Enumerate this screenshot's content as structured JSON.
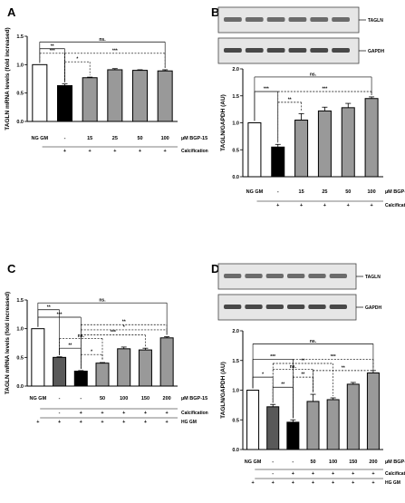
{
  "chart_data": [
    {
      "panel": "A",
      "type": "bar",
      "ylabel": "TAGLN mRNA levels (fold increased)",
      "ylim": [
        0,
        1.5
      ],
      "yticks": [
        "0.0",
        "0.5",
        "1.0",
        "1.5"
      ],
      "categories": [
        "NG GM",
        "-",
        "15",
        "25",
        "50",
        "100"
      ],
      "values": [
        1.0,
        0.63,
        0.77,
        0.91,
        0.9,
        0.89
      ],
      "errors": [
        0,
        0.03,
        0.01,
        0.02,
        0.01,
        0.02
      ],
      "fills": [
        "#ffffff",
        "#000000",
        "#999999",
        "#999999",
        "#999999",
        "#999999"
      ],
      "condition_label": "µM BGP-15",
      "rows": [
        {
          "label": "Calcification Medium",
          "marks": [
            "",
            "+",
            "+",
            "+",
            "+",
            "+"
          ]
        }
      ],
      "significance": [
        {
          "from": 0,
          "to": 5,
          "label": "ns.",
          "level": 1.4,
          "style": "solid"
        },
        {
          "from": 0,
          "to": 1,
          "label": "**",
          "level": 1.28,
          "style": "solid"
        },
        {
          "from": 0,
          "to": 1,
          "label": "***",
          "level": 1.2,
          "style": "dashed"
        },
        {
          "from": 1,
          "to": 2,
          "label": "*",
          "level": 1.05,
          "style": "dashed"
        },
        {
          "from": 1,
          "to": 5,
          "label": "***",
          "level": 1.2,
          "style": "dashed"
        }
      ]
    },
    {
      "panel": "B",
      "type": "bar",
      "ylabel": "TAGLN/GAPDH (AU)",
      "ylim": [
        0,
        2.0
      ],
      "yticks": [
        "0.0",
        "0.5",
        "1.0",
        "1.5",
        "2.0"
      ],
      "categories": [
        "NG GM",
        "-",
        "15",
        "25",
        "50",
        "100"
      ],
      "values": [
        1.0,
        0.55,
        1.05,
        1.22,
        1.28,
        1.45
      ],
      "errors": [
        0,
        0.05,
        0.12,
        0.07,
        0.08,
        0.03
      ],
      "fills": [
        "#ffffff",
        "#000000",
        "#999999",
        "#999999",
        "#999999",
        "#999999"
      ],
      "condition_label": "µM BGP-15",
      "rows": [
        {
          "label": "Calcification Medium",
          "marks": [
            "",
            "+",
            "+",
            "+",
            "+",
            "+"
          ]
        }
      ],
      "blot_labels": [
        "TAGLN",
        "GAPDH"
      ],
      "significance": [
        {
          "from": 0,
          "to": 5,
          "label": "ns.",
          "level": 1.85,
          "style": "solid"
        },
        {
          "from": 0,
          "to": 1,
          "label": "***",
          "level": 1.58,
          "style": "solid"
        },
        {
          "from": 1,
          "to": 2,
          "label": "**",
          "level": 1.38,
          "style": "dashed"
        },
        {
          "from": 1,
          "to": 5,
          "label": "***",
          "level": 1.58,
          "style": "dashed"
        }
      ]
    },
    {
      "panel": "C",
      "type": "bar",
      "ylabel": "TAGLN mRNA levels (fold increased)",
      "ylim": [
        0,
        1.5
      ],
      "yticks": [
        "0.0",
        "0.5",
        "1.0",
        "1.5"
      ],
      "categories": [
        "NG GM",
        "-",
        "-",
        "50",
        "100",
        "150",
        "200"
      ],
      "values": [
        1.0,
        0.5,
        0.26,
        0.4,
        0.65,
        0.63,
        0.84
      ],
      "errors": [
        0,
        0.01,
        0.01,
        0.01,
        0.03,
        0.03,
        0.02
      ],
      "fills": [
        "#ffffff",
        "#595959",
        "#000000",
        "#999999",
        "#999999",
        "#999999",
        "#999999"
      ],
      "condition_label": "µM BGP-15",
      "rows": [
        {
          "label": "Calcification Medium",
          "marks": [
            "",
            "-",
            "+",
            "+",
            "+",
            "+",
            "+"
          ]
        },
        {
          "label": "HG GM",
          "marks": [
            "+",
            "+",
            "+",
            "+",
            "+",
            "+",
            "+"
          ]
        }
      ],
      "significance": [
        {
          "from": 0,
          "to": 6,
          "label": "ns.",
          "level": 1.45,
          "style": "solid"
        },
        {
          "from": 0,
          "to": 1,
          "label": "**",
          "level": 1.33,
          "style": "solid"
        },
        {
          "from": 0,
          "to": 2,
          "label": "***",
          "level": 1.2,
          "style": "solid"
        },
        {
          "from": 2,
          "to": 6,
          "label": "**",
          "level": 1.07,
          "style": "dashed"
        },
        {
          "from": 2,
          "to": 6,
          "label": "*",
          "level": 0.98,
          "style": "dashed"
        },
        {
          "from": 1,
          "to": 3,
          "label": "ns.",
          "level": 0.83,
          "style": "dashed"
        },
        {
          "from": 2,
          "to": 5,
          "label": "***",
          "level": 0.89,
          "style": "dashed"
        },
        {
          "from": 1,
          "to": 2,
          "label": "**",
          "level": 0.66,
          "style": "solid"
        },
        {
          "from": 2,
          "to": 3,
          "label": "*",
          "level": 0.55,
          "style": "dashed"
        }
      ]
    },
    {
      "panel": "D",
      "type": "bar",
      "ylabel": "TAGLN/GAPDH (AU)",
      "ylim": [
        0,
        2.0
      ],
      "yticks": [
        "0.0",
        "0.5",
        "1.0",
        "1.5",
        "2.0"
      ],
      "categories": [
        "NG GM",
        "-",
        "-",
        "50",
        "100",
        "150",
        "200"
      ],
      "values": [
        1.0,
        0.72,
        0.46,
        0.81,
        0.84,
        1.1,
        1.29
      ],
      "errors": [
        0,
        0.04,
        0.04,
        0.12,
        0.03,
        0.03,
        0.04
      ],
      "fills": [
        "#ffffff",
        "#595959",
        "#000000",
        "#999999",
        "#999999",
        "#999999",
        "#999999"
      ],
      "condition_label": "µM BGP-15",
      "rows": [
        {
          "label": "Calcification Medium",
          "marks": [
            "",
            "-",
            "+",
            "+",
            "+",
            "+",
            "+"
          ]
        },
        {
          "label": "HG GM",
          "marks": [
            "+",
            "+",
            "+",
            "+",
            "+",
            "+",
            "+"
          ]
        }
      ],
      "blot_labels": [
        "TAGLN",
        "GAPDH"
      ],
      "significance": [
        {
          "from": 0,
          "to": 6,
          "label": "ns.",
          "level": 1.78,
          "style": "solid"
        },
        {
          "from": 0,
          "to": 2,
          "label": "***",
          "level": 1.52,
          "style": "solid"
        },
        {
          "from": 0,
          "to": 1,
          "label": "*",
          "level": 1.22,
          "style": "solid"
        },
        {
          "from": 1,
          "to": 4,
          "label": "**",
          "level": 1.45,
          "style": "dashed"
        },
        {
          "from": 1,
          "to": 3,
          "label": "ns.",
          "level": 1.35,
          "style": "dashed"
        },
        {
          "from": 2,
          "to": 6,
          "label": "***",
          "level": 1.52,
          "style": "dashed"
        },
        {
          "from": 2,
          "to": 3,
          "label": "**",
          "level": 1.22,
          "style": "dashed"
        },
        {
          "from": 1,
          "to": 2,
          "label": "**",
          "level": 1.05,
          "style": "solid"
        },
        {
          "from": 3,
          "to": 6,
          "label": "**",
          "level": 1.33,
          "style": "dashed"
        }
      ]
    }
  ]
}
